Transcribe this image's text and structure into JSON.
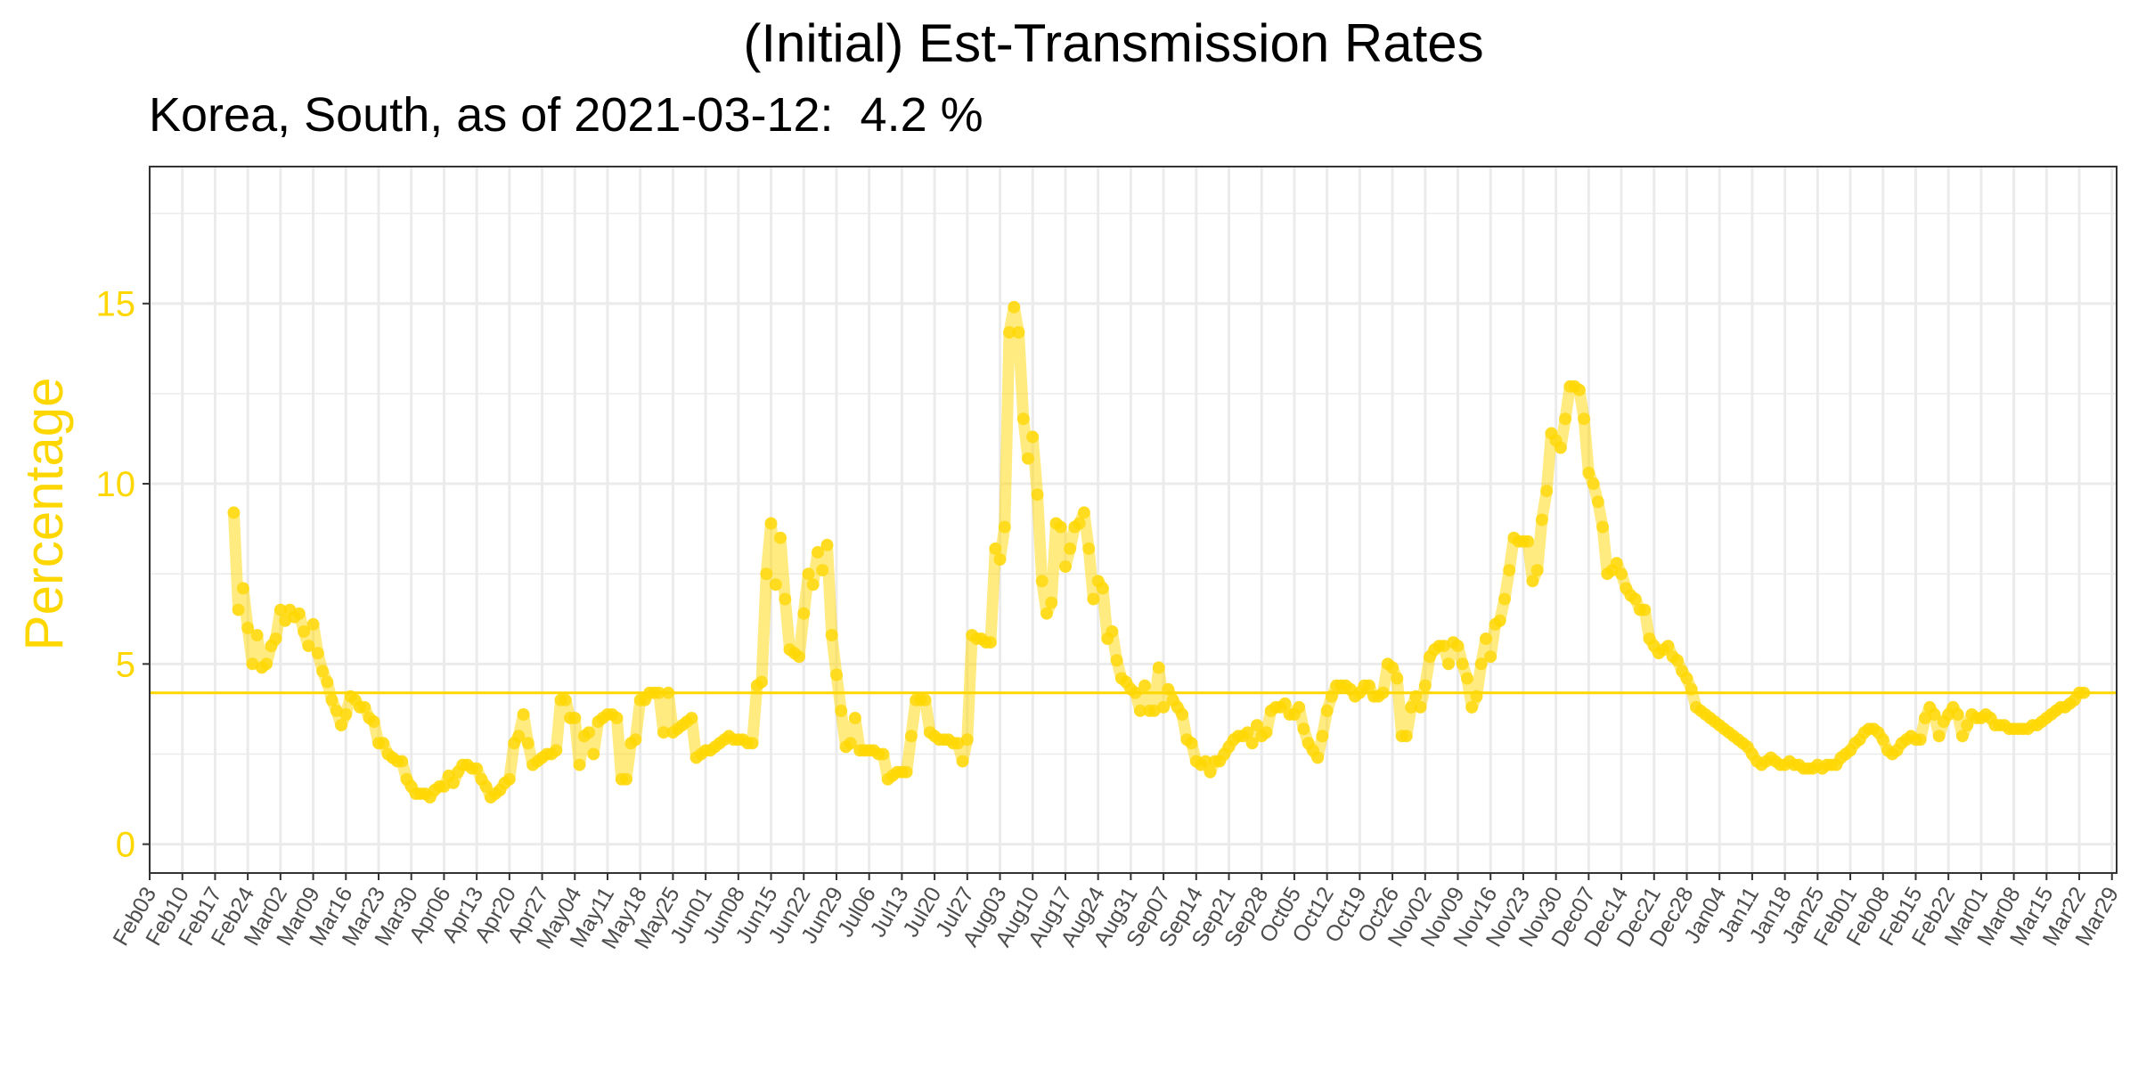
{
  "chart_data": {
    "type": "line",
    "title": "(Initial) Est-Transmission Rates",
    "subtitle": "Korea, South, as of 2021-03-12:  4.2 %",
    "xlabel": "",
    "ylabel": "Percentage",
    "ylim": [
      -0.8,
      18.8
    ],
    "yticks": [
      0,
      5,
      10,
      15
    ],
    "xlim": [
      "2020-02-03",
      "2021-03-30"
    ],
    "x_tick_labels": [
      "Feb03",
      "Feb10",
      "Feb17",
      "Feb24",
      "Mar02",
      "Mar09",
      "Mar16",
      "Mar23",
      "Mar30",
      "Apr06",
      "Apr13",
      "Apr20",
      "Apr27",
      "May04",
      "May11",
      "May18",
      "May25",
      "Jun01",
      "Jun08",
      "Jun15",
      "Jun22",
      "Jun29",
      "Jul06",
      "Jul13",
      "Jul20",
      "Jul27",
      "Aug03",
      "Aug10",
      "Aug17",
      "Aug24",
      "Aug31",
      "Sep07",
      "Sep14",
      "Sep21",
      "Sep28",
      "Oct05",
      "Oct12",
      "Oct19",
      "Oct26",
      "Nov02",
      "Nov09",
      "Nov16",
      "Nov23",
      "Nov30",
      "Dec07",
      "Dec14",
      "Dec21",
      "Dec28",
      "Jan04",
      "Jan11",
      "Jan18",
      "Jan25",
      "Feb01",
      "Feb08",
      "Feb15",
      "Feb22",
      "Mar01",
      "Mar08",
      "Mar15",
      "Mar22",
      "Mar29"
    ],
    "reference_line": 4.2,
    "grid": true,
    "colors": {
      "series": "#FFD700",
      "axis_text": "#FFD700",
      "grid": "#ebebeb",
      "frame": "#333333"
    },
    "series": [
      {
        "start_date": "2020-02-21",
        "end_date": "2021-03-12",
        "values": [
          9.2,
          6.5,
          7.1,
          6.0,
          5.0,
          5.8,
          4.9,
          5.0,
          5.5,
          5.7,
          6.5,
          6.2,
          6.5,
          6.3,
          6.4,
          5.9,
          5.5,
          6.1,
          5.3,
          4.8,
          4.5,
          4.0,
          3.7,
          3.3,
          3.6,
          4.1,
          4.0,
          3.8,
          3.8,
          3.5,
          3.4,
          2.8,
          2.8,
          2.5,
          2.4,
          2.3,
          2.3,
          1.8,
          1.6,
          1.4,
          1.4,
          1.4,
          1.3,
          1.5,
          1.6,
          1.6,
          1.9,
          1.7,
          2.0,
          2.2,
          2.2,
          2.1,
          2.1,
          1.8,
          1.6,
          1.3,
          1.4,
          1.5,
          1.7,
          1.8,
          2.8,
          3.0,
          3.6,
          2.8,
          2.2,
          2.3,
          2.4,
          2.5,
          2.5,
          2.6,
          4.0,
          4.0,
          3.5,
          3.5,
          2.2,
          3.0,
          3.1,
          2.5,
          3.4,
          3.5,
          3.6,
          3.6,
          3.5,
          1.8,
          1.8,
          2.8,
          2.9,
          4.0,
          4.0,
          4.2,
          4.2,
          4.2,
          3.1,
          4.2,
          3.1,
          3.2,
          3.3,
          3.4,
          3.5,
          2.4,
          2.5,
          2.6,
          2.6,
          2.7,
          2.8,
          2.9,
          3.0,
          2.9,
          2.9,
          2.9,
          2.8,
          2.8,
          4.4,
          4.5,
          7.5,
          8.9,
          7.2,
          8.5,
          6.8,
          5.4,
          5.3,
          5.2,
          6.4,
          7.5,
          7.2,
          8.1,
          7.6,
          8.3,
          5.8,
          4.7,
          3.7,
          2.7,
          2.8,
          3.5,
          2.6,
          2.6,
          2.6,
          2.6,
          2.5,
          2.5,
          1.8,
          1.9,
          2.0,
          2.0,
          2.0,
          3.0,
          4.0,
          4.0,
          4.0,
          3.1,
          3.0,
          2.9,
          2.9,
          2.9,
          2.8,
          2.8,
          2.3,
          2.9,
          5.8,
          5.7,
          5.7,
          5.6,
          5.6,
          8.2,
          7.9,
          8.8,
          14.2,
          14.9,
          14.2,
          11.8,
          10.7,
          11.3,
          9.7,
          7.3,
          6.4,
          6.7,
          8.9,
          8.8,
          7.7,
          8.2,
          8.8,
          8.9,
          9.2,
          8.2,
          6.8,
          7.3,
          7.1,
          5.7,
          5.9,
          5.1,
          4.6,
          4.5,
          4.3,
          4.2,
          3.7,
          4.4,
          3.7,
          3.7,
          4.9,
          3.8,
          4.3,
          4.0,
          3.8,
          3.6,
          2.9,
          2.8,
          2.3,
          2.2,
          2.3,
          2.0,
          2.3,
          2.3,
          2.5,
          2.7,
          2.9,
          3.0,
          3.0,
          3.1,
          2.8,
          3.3,
          3.0,
          3.1,
          3.7,
          3.8,
          3.8,
          3.9,
          3.6,
          3.6,
          3.8,
          3.2,
          2.8,
          2.6,
          2.4,
          3.0,
          3.7,
          4.1,
          4.4,
          4.4,
          4.4,
          4.3,
          4.1,
          4.2,
          4.4,
          4.4,
          4.1,
          4.1,
          4.2,
          5.0,
          4.9,
          4.6,
          3.0,
          3.0,
          3.8,
          4.1,
          3.8,
          4.4,
          5.2,
          5.4,
          5.5,
          5.5,
          5.0,
          5.6,
          5.5,
          5.0,
          4.6,
          3.8,
          4.1,
          5.0,
          5.7,
          5.2,
          6.1,
          6.2,
          6.8,
          7.6,
          8.5,
          8.4,
          8.4,
          8.4,
          7.3,
          7.6,
          9.0,
          9.8,
          11.4,
          11.2,
          11.0,
          11.8,
          12.7,
          12.7,
          12.6,
          11.8,
          10.3,
          10.0,
          9.5,
          8.8,
          7.5,
          7.6,
          7.8,
          7.5,
          7.1,
          6.9,
          6.8,
          6.5,
          6.5,
          5.7,
          5.5,
          5.3,
          5.4,
          5.5,
          5.2,
          5.1,
          4.8,
          4.6,
          4.3,
          3.8,
          3.7,
          3.6,
          3.5,
          3.4,
          3.3,
          3.2,
          3.1,
          3.0,
          2.9,
          2.8,
          2.7,
          2.5,
          2.3,
          2.2,
          2.3,
          2.4,
          2.3,
          2.2,
          2.2,
          2.3,
          2.2,
          2.2,
          2.1,
          2.1,
          2.1,
          2.2,
          2.1,
          2.2,
          2.2,
          2.2,
          2.4,
          2.5,
          2.6,
          2.8,
          2.9,
          3.1,
          3.2,
          3.2,
          3.1,
          2.9,
          2.6,
          2.5,
          2.6,
          2.8,
          2.9,
          3.0,
          2.9,
          2.9,
          3.5,
          3.8,
          3.6,
          3.0,
          3.4,
          3.6,
          3.8,
          3.6,
          3.0,
          3.3,
          3.6,
          3.5,
          3.5,
          3.6,
          3.5,
          3.3,
          3.3,
          3.3,
          3.2,
          3.2,
          3.2,
          3.2,
          3.2,
          3.3,
          3.3,
          3.4,
          3.5,
          3.6,
          3.7,
          3.8,
          3.8,
          3.9,
          4.0,
          4.2,
          4.2
        ]
      }
    ]
  }
}
